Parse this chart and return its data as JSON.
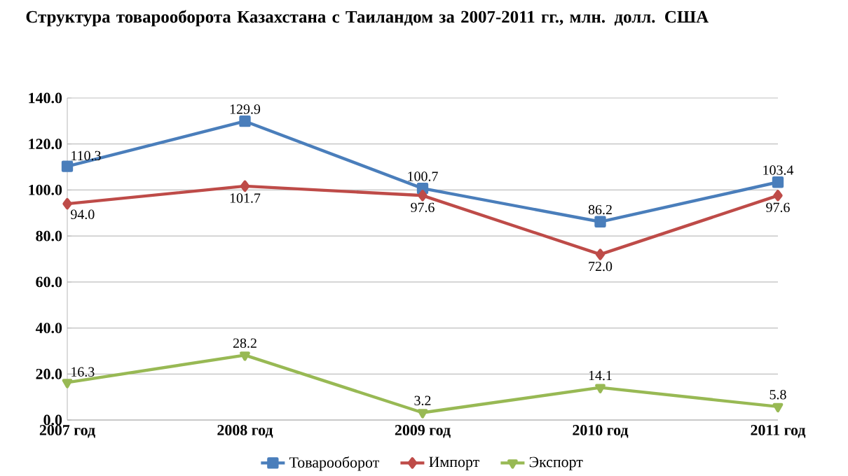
{
  "chart_data": {
    "type": "line",
    "title": "Структура товарооборота Казахстана с Таиландом за 2007-2011 гг., млн. долл. США",
    "categories": [
      "2007 год",
      "2008 год",
      "2009 год",
      "2010 год",
      "2011 год"
    ],
    "series": [
      {
        "name": "Товарооборот",
        "color": "#4a7ebb",
        "marker": "square",
        "values": [
          110.3,
          129.9,
          100.7,
          86.2,
          103.4
        ],
        "value_labels": [
          "110.3",
          "129.9",
          "100.7",
          "86.2",
          "103.4"
        ]
      },
      {
        "name": "Импорт",
        "color": "#be4b48",
        "marker": "diamond",
        "values": [
          94.0,
          101.7,
          97.6,
          72.0,
          97.6
        ],
        "value_labels": [
          "94.0",
          "101.7",
          "97.6",
          "72.0",
          "97.6"
        ]
      },
      {
        "name": "Экспорт",
        "color": "#98b954",
        "marker": "triangle",
        "values": [
          16.3,
          28.2,
          3.2,
          14.1,
          5.8
        ],
        "value_labels": [
          "16.3",
          "28.2",
          "3.2",
          "14.1",
          "5.8"
        ]
      }
    ],
    "ylim": [
      0,
      140
    ],
    "yticks": [
      {
        "value": 0,
        "label": "0.0"
      },
      {
        "value": 20,
        "label": "20.0"
      },
      {
        "value": 40,
        "label": "40.0"
      },
      {
        "value": 60,
        "label": "60.0"
      },
      {
        "value": 80,
        "label": "80.0"
      },
      {
        "value": 100,
        "label": "100.0"
      },
      {
        "value": 120,
        "label": "120.0"
      },
      {
        "value": 140,
        "label": "140.0"
      }
    ],
    "grid": "y",
    "legend": "bottom",
    "line_style": "solid"
  }
}
